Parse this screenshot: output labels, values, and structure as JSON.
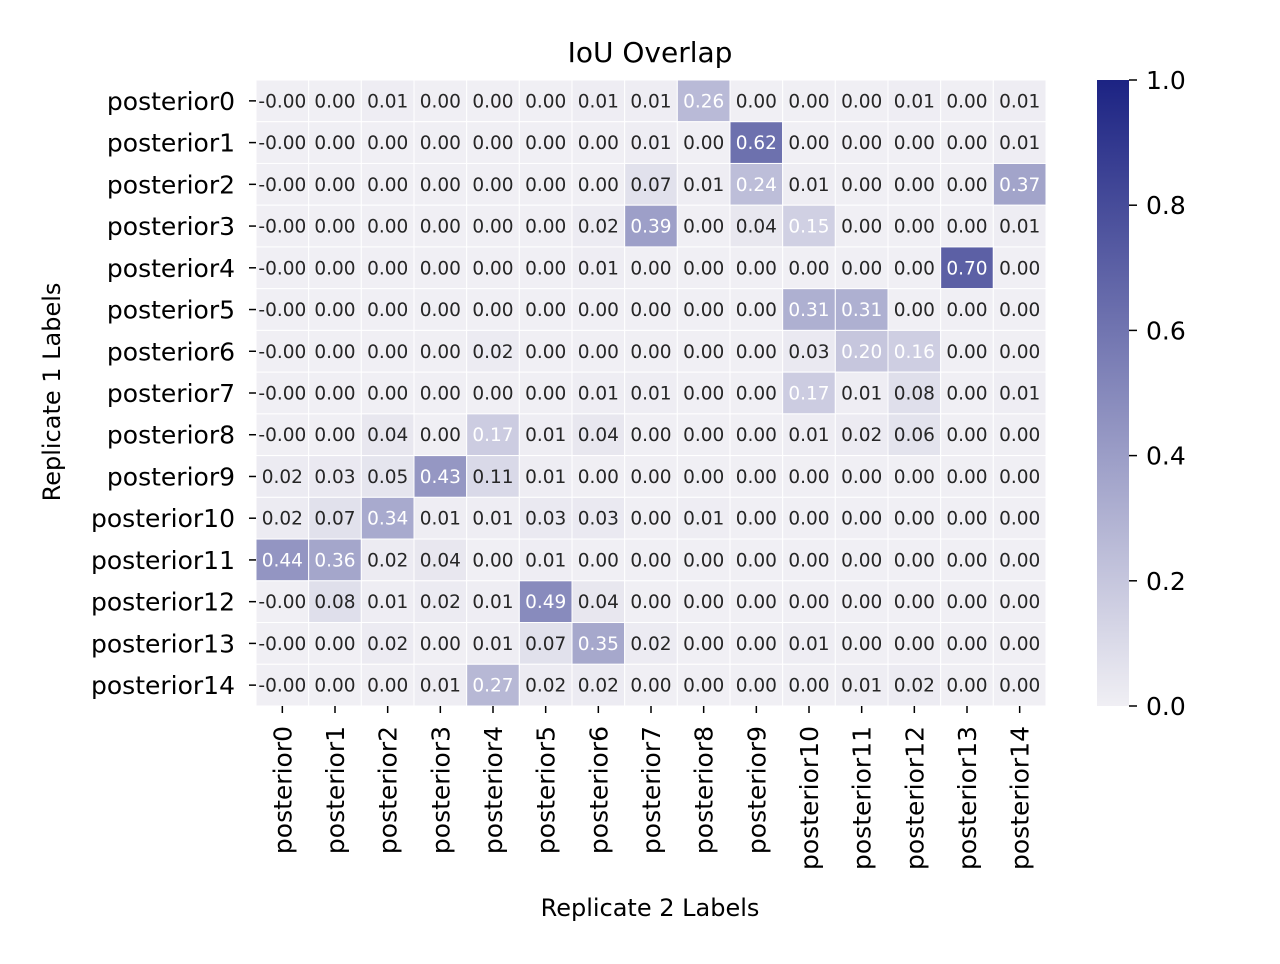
{
  "chart_data": {
    "type": "heatmap",
    "title": "IoU Overlap",
    "xlabel": "Replicate 2 Labels",
    "ylabel": "Replicate 1 Labels",
    "x_categories": [
      "posterior0",
      "posterior1",
      "posterior2",
      "posterior3",
      "posterior4",
      "posterior5",
      "posterior6",
      "posterior7",
      "posterior8",
      "posterior9",
      "posterior10",
      "posterior11",
      "posterior12",
      "posterior13",
      "posterior14"
    ],
    "y_categories": [
      "posterior0",
      "posterior1",
      "posterior2",
      "posterior3",
      "posterior4",
      "posterior5",
      "posterior6",
      "posterior7",
      "posterior8",
      "posterior9",
      "posterior10",
      "posterior11",
      "posterior12",
      "posterior13",
      "posterior14"
    ],
    "values": [
      [
        -0.0,
        0.0,
        0.01,
        0.0,
        0.0,
        0.0,
        0.01,
        0.01,
        0.26,
        0.0,
        0.0,
        0.0,
        0.01,
        0.0,
        0.01
      ],
      [
        -0.0,
        0.0,
        0.0,
        0.0,
        0.0,
        0.0,
        0.0,
        0.01,
        0.0,
        0.62,
        0.0,
        0.0,
        0.0,
        0.0,
        0.01
      ],
      [
        -0.0,
        0.0,
        0.0,
        0.0,
        0.0,
        0.0,
        0.0,
        0.07,
        0.01,
        0.24,
        0.01,
        0.0,
        0.0,
        0.0,
        0.37
      ],
      [
        -0.0,
        0.0,
        0.0,
        0.0,
        0.0,
        0.0,
        0.02,
        0.39,
        0.0,
        0.04,
        0.15,
        0.0,
        0.0,
        0.0,
        0.01
      ],
      [
        -0.0,
        0.0,
        0.0,
        0.0,
        0.0,
        0.0,
        0.01,
        0.0,
        0.0,
        0.0,
        0.0,
        0.0,
        0.0,
        0.7,
        0.0
      ],
      [
        -0.0,
        0.0,
        0.0,
        0.0,
        0.0,
        0.0,
        0.0,
        0.0,
        0.0,
        0.0,
        0.31,
        0.31,
        0.0,
        0.0,
        0.0
      ],
      [
        -0.0,
        0.0,
        0.0,
        0.0,
        0.02,
        0.0,
        0.0,
        0.0,
        0.0,
        0.0,
        0.03,
        0.2,
        0.16,
        0.0,
        0.0
      ],
      [
        -0.0,
        0.0,
        0.0,
        0.0,
        0.0,
        0.0,
        0.01,
        0.01,
        0.0,
        0.0,
        0.17,
        0.01,
        0.08,
        0.0,
        0.01
      ],
      [
        -0.0,
        0.0,
        0.04,
        0.0,
        0.17,
        0.01,
        0.04,
        0.0,
        0.0,
        0.0,
        0.01,
        0.02,
        0.06,
        0.0,
        0.0
      ],
      [
        0.02,
        0.03,
        0.05,
        0.43,
        0.11,
        0.01,
        0.0,
        0.0,
        0.0,
        0.0,
        0.0,
        0.0,
        0.0,
        0.0,
        0.0
      ],
      [
        0.02,
        0.07,
        0.34,
        0.01,
        0.01,
        0.03,
        0.03,
        0.0,
        0.01,
        0.0,
        0.0,
        0.0,
        0.0,
        0.0,
        0.0
      ],
      [
        0.44,
        0.36,
        0.02,
        0.04,
        0.0,
        0.01,
        0.0,
        0.0,
        0.0,
        0.0,
        0.0,
        0.0,
        0.0,
        0.0,
        0.0
      ],
      [
        -0.0,
        0.08,
        0.01,
        0.02,
        0.01,
        0.49,
        0.04,
        0.0,
        0.0,
        0.0,
        0.0,
        0.0,
        0.0,
        0.0,
        0.0
      ],
      [
        -0.0,
        0.0,
        0.02,
        0.0,
        0.01,
        0.07,
        0.35,
        0.02,
        0.0,
        0.0,
        0.01,
        0.0,
        0.0,
        0.0,
        0.0
      ],
      [
        -0.0,
        0.0,
        0.0,
        0.01,
        0.27,
        0.02,
        0.02,
        0.0,
        0.0,
        0.0,
        0.0,
        0.01,
        0.02,
        0.0,
        0.0
      ]
    ],
    "value_labels": [
      [
        "-0.00",
        "0.00",
        "0.01",
        "0.00",
        "0.00",
        "0.00",
        "0.01",
        "0.01",
        "0.26",
        "0.00",
        "0.00",
        "0.00",
        "0.01",
        "0.00",
        "0.01"
      ],
      [
        "-0.00",
        "0.00",
        "0.00",
        "0.00",
        "0.00",
        "0.00",
        "0.00",
        "0.01",
        "0.00",
        "0.62",
        "0.00",
        "0.00",
        "0.00",
        "0.00",
        "0.01"
      ],
      [
        "-0.00",
        "0.00",
        "0.00",
        "0.00",
        "0.00",
        "0.00",
        "0.00",
        "0.07",
        "0.01",
        "0.24",
        "0.01",
        "0.00",
        "0.00",
        "0.00",
        "0.37"
      ],
      [
        "-0.00",
        "0.00",
        "0.00",
        "0.00",
        "0.00",
        "0.00",
        "0.02",
        "0.39",
        "0.00",
        "0.04",
        "0.15",
        "0.00",
        "0.00",
        "0.00",
        "0.01"
      ],
      [
        "-0.00",
        "0.00",
        "0.00",
        "0.00",
        "0.00",
        "0.00",
        "0.01",
        "0.00",
        "0.00",
        "0.00",
        "0.00",
        "0.00",
        "0.00",
        "0.70",
        "0.00"
      ],
      [
        "-0.00",
        "0.00",
        "0.00",
        "0.00",
        "0.00",
        "0.00",
        "0.00",
        "0.00",
        "0.00",
        "0.00",
        "0.31",
        "0.31",
        "0.00",
        "0.00",
        "0.00"
      ],
      [
        "-0.00",
        "0.00",
        "0.00",
        "0.00",
        "0.02",
        "0.00",
        "0.00",
        "0.00",
        "0.00",
        "0.00",
        "0.03",
        "0.20",
        "0.16",
        "0.00",
        "0.00"
      ],
      [
        "-0.00",
        "0.00",
        "0.00",
        "0.00",
        "0.00",
        "0.00",
        "0.01",
        "0.01",
        "0.00",
        "0.00",
        "0.17",
        "0.01",
        "0.08",
        "0.00",
        "0.01"
      ],
      [
        "-0.00",
        "0.00",
        "0.04",
        "0.00",
        "0.17",
        "0.01",
        "0.04",
        "0.00",
        "0.00",
        "0.00",
        "0.01",
        "0.02",
        "0.06",
        "0.00",
        "0.00"
      ],
      [
        "0.02",
        "0.03",
        "0.05",
        "0.43",
        "0.11",
        "0.01",
        "0.00",
        "0.00",
        "0.00",
        "0.00",
        "0.00",
        "0.00",
        "0.00",
        "0.00",
        "0.00"
      ],
      [
        "0.02",
        "0.07",
        "0.34",
        "0.01",
        "0.01",
        "0.03",
        "0.03",
        "0.00",
        "0.01",
        "0.00",
        "0.00",
        "0.00",
        "0.00",
        "0.00",
        "0.00"
      ],
      [
        "0.44",
        "0.36",
        "0.02",
        "0.04",
        "0.00",
        "0.01",
        "0.00",
        "0.00",
        "0.00",
        "0.00",
        "0.00",
        "0.00",
        "0.00",
        "0.00",
        "0.00"
      ],
      [
        "-0.00",
        "0.08",
        "0.01",
        "0.02",
        "0.01",
        "0.49",
        "0.04",
        "0.00",
        "0.00",
        "0.00",
        "0.00",
        "0.00",
        "0.00",
        "0.00",
        "0.00"
      ],
      [
        "-0.00",
        "0.00",
        "0.02",
        "0.00",
        "0.01",
        "0.07",
        "0.35",
        "0.02",
        "0.00",
        "0.00",
        "0.01",
        "0.00",
        "0.00",
        "0.00",
        "0.00"
      ],
      [
        "-0.00",
        "0.00",
        "0.00",
        "0.01",
        "0.27",
        "0.02",
        "0.02",
        "0.00",
        "0.00",
        "0.00",
        "0.00",
        "0.01",
        "0.02",
        "0.00",
        "0.00"
      ]
    ],
    "colorbar": {
      "range": [
        0.0,
        1.0
      ],
      "ticks": [
        0.0,
        0.2,
        0.4,
        0.6,
        0.8,
        1.0
      ],
      "tick_labels": [
        "0.0",
        "0.2",
        "0.4",
        "0.6",
        "0.8",
        "1.0"
      ],
      "color_low": "#f0eff4",
      "color_high": "#1c2383"
    },
    "annotation_color_dark": "#262626",
    "annotation_color_light": "#ffffff",
    "cell_border_color": "#ffffff"
  }
}
